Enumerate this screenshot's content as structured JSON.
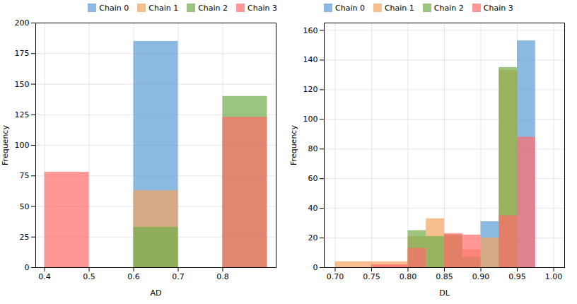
{
  "chart_data": [
    {
      "type": "histogram",
      "xlabel": "AD",
      "ylabel": "Frequency",
      "bins": [
        0.4,
        0.5,
        0.6,
        0.7,
        0.8,
        0.9
      ],
      "series": [
        {
          "name": "Chain 0",
          "color": "#5B9BD5",
          "values": [
            0,
            0,
            185,
            0,
            0
          ]
        },
        {
          "name": "Chain 1",
          "color": "#F4A460",
          "values": [
            0,
            0,
            63,
            0,
            0
          ]
        },
        {
          "name": "Chain 2",
          "color": "#70AD47",
          "values": [
            0,
            0,
            33,
            0,
            140
          ]
        },
        {
          "name": "Chain 3",
          "color": "#FF6B6B",
          "values": [
            78,
            0,
            0,
            0,
            123
          ]
        }
      ],
      "xlim": [
        0.38,
        0.92
      ],
      "ylim": [
        0,
        200
      ],
      "xticks": [
        0.4,
        0.5,
        0.6,
        0.7,
        0.8
      ],
      "yticks": [
        0,
        25,
        50,
        75,
        100,
        125,
        150,
        175,
        200
      ],
      "grid": true,
      "legend": "upper right"
    },
    {
      "type": "histogram",
      "xlabel": "DL",
      "ylabel": "Frequency",
      "bins": [
        0.7,
        0.75,
        0.8,
        0.825,
        0.85,
        0.875,
        0.9,
        0.925,
        0.95,
        0.975
      ],
      "series": [
        {
          "name": "Chain 0",
          "color": "#5B9BD5",
          "values": [
            0,
            0,
            0,
            0,
            0,
            0,
            31,
            0,
            153
          ]
        },
        {
          "name": "Chain 1",
          "color": "#F4A460",
          "values": [
            4,
            4,
            21,
            33,
            22,
            12,
            20,
            133,
            0
          ]
        },
        {
          "name": "Chain 2",
          "color": "#70AD47",
          "values": [
            0,
            0,
            25,
            21,
            22,
            7,
            0,
            135,
            0
          ]
        },
        {
          "name": "Chain 3",
          "color": "#FF6B6B",
          "values": [
            0,
            2,
            13,
            0,
            23,
            22,
            0,
            35,
            88
          ]
        }
      ],
      "xlim": [
        0.685,
        1.015
      ],
      "ylim": [
        0,
        165
      ],
      "xticks": [
        {
          "value": 0.7,
          "label": "0.70"
        },
        {
          "value": 0.75,
          "label": "0.75"
        },
        {
          "value": 0.8,
          "label": "0.80"
        },
        {
          "value": 0.85,
          "label": "0.85"
        },
        {
          "value": 0.9,
          "label": "0.90"
        },
        {
          "value": 0.95,
          "label": "0.95"
        },
        {
          "value": 1.0,
          "label": "1.00"
        }
      ],
      "yticks": [
        0,
        20,
        40,
        60,
        80,
        100,
        120,
        140,
        160
      ],
      "grid": true,
      "legend": "upper left"
    }
  ]
}
